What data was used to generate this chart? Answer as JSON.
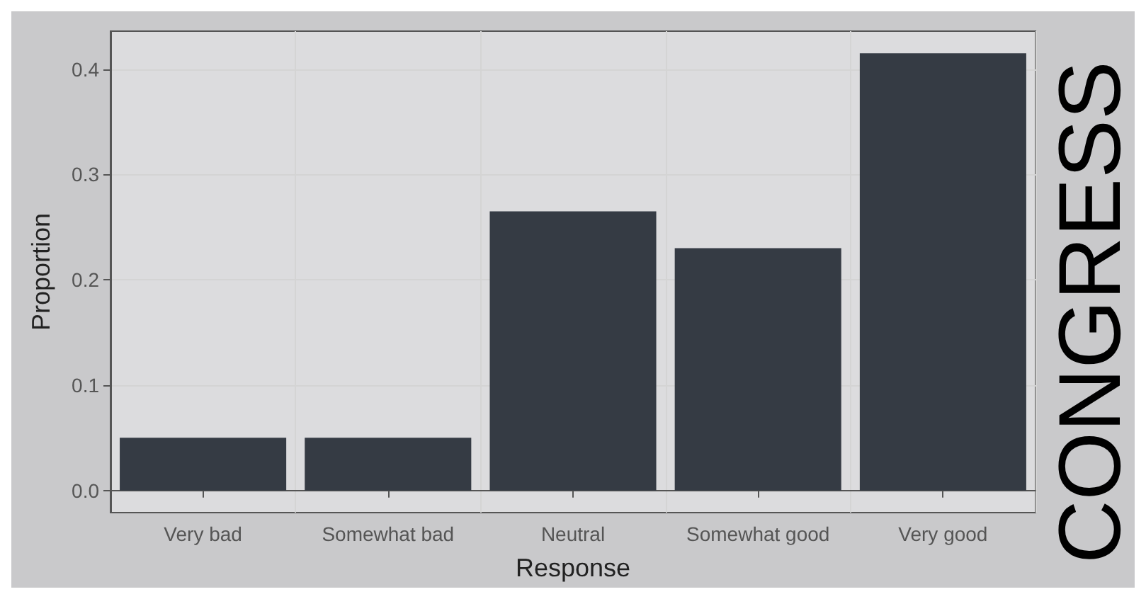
{
  "chart_data": {
    "type": "bar",
    "xlabel": "Response",
    "ylabel": "Proportion",
    "categories": [
      "Very bad",
      "Somewhat bad",
      "Neutral",
      "Somewhat good",
      "Very good"
    ],
    "values": [
      0.05,
      0.05,
      0.265,
      0.23,
      0.415
    ],
    "color": "#353b44",
    "ylim": [
      -0.021,
      0.436
    ],
    "yticks": [
      {
        "value": 0,
        "label": "0.0"
      },
      0.1,
      0.2,
      0.3,
      0.4
    ],
    "grid": true,
    "annotations": [
      "CONGRESS"
    ]
  }
}
